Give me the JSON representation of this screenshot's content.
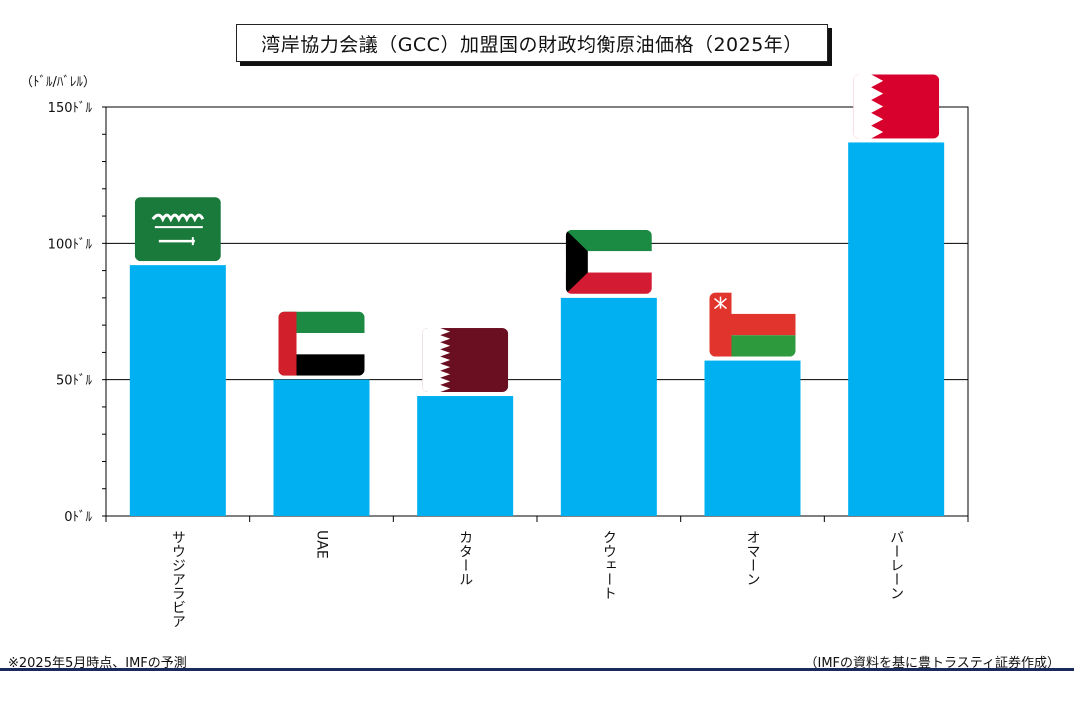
{
  "chart_data": {
    "type": "bar",
    "title": "湾岸協力会議（GCC）加盟国の財政均衡原油価格（2025年）",
    "ylabel": "（ﾄﾞﾙ/ﾊﾞﾚﾙ）",
    "categories": [
      "サウジアラビア",
      "UAE",
      "カタール",
      "クウェート",
      "オマーン",
      "バーレーン"
    ],
    "values": [
      92,
      50,
      44,
      80,
      57,
      137
    ],
    "ylim": [
      0,
      150
    ],
    "yticks": [
      {
        "value": 0,
        "label": "0ﾄﾞﾙ"
      },
      {
        "value": 50,
        "label": "50ﾄﾞﾙ"
      },
      {
        "value": 100,
        "label": "100ﾄﾞﾙ"
      },
      {
        "value": 150,
        "label": "150ﾄﾞﾙ"
      }
    ],
    "grid": true,
    "bar_color": "#00b0f0",
    "flags": [
      "saudi-arabia-flag-icon",
      "uae-flag-icon",
      "qatar-flag-icon",
      "kuwait-flag-icon",
      "oman-flag-icon",
      "bahrain-flag-icon"
    ]
  },
  "footer": {
    "note": "※2025年5月時点、IMFの予測",
    "source": "（IMFの資料を基に豊トラスティ証券作成）"
  },
  "colors": {
    "rule": "#1a2a5a",
    "saudi_green": "#1a7a3c",
    "uae_red": "#d11f2b",
    "uae_green": "#1c8a43",
    "qatar_maroon": "#6a0f22",
    "kuwait_green": "#1b8a43",
    "kuwait_red": "#d31c34",
    "oman_red": "#e0342c",
    "oman_green": "#2e9a3e",
    "bahrain_red": "#d8002c"
  }
}
